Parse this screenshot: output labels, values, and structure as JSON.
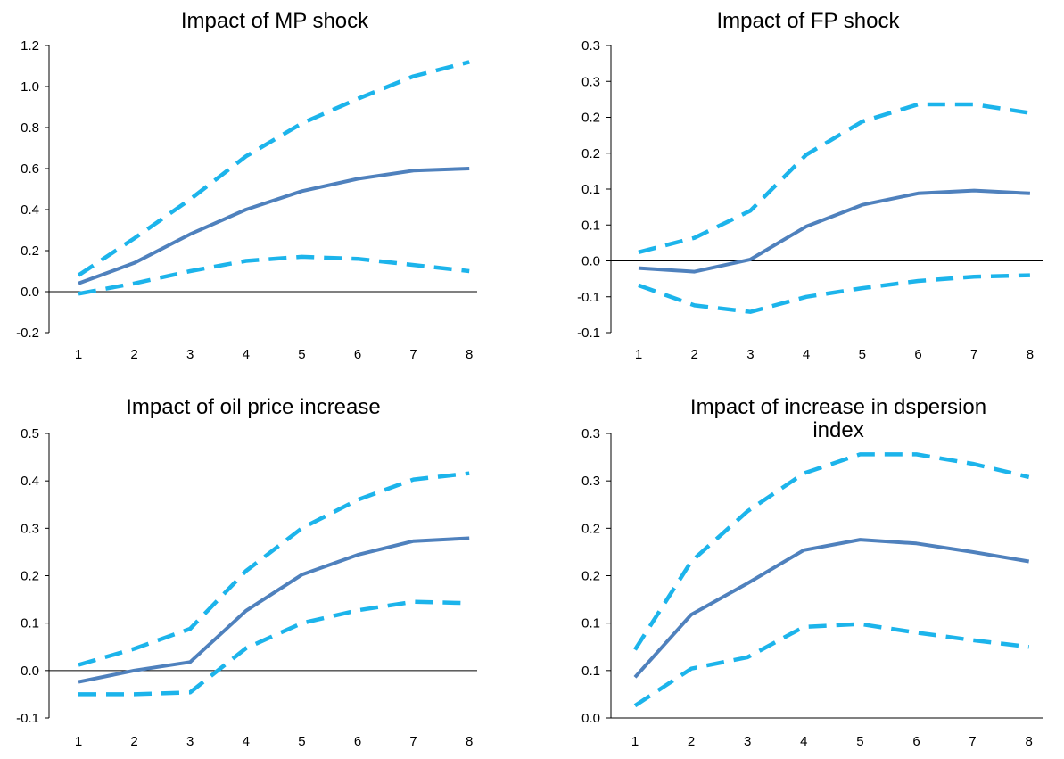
{
  "colors": {
    "estimate": "#4F81BD",
    "band": "#1CB4EB",
    "axis": "#000000"
  },
  "chart_data": [
    {
      "type": "line",
      "title_lines": [
        "Impact of MP shock"
      ],
      "x": [
        1,
        2,
        3,
        4,
        5,
        6,
        7,
        8
      ],
      "ylim": [
        -0.2,
        1.2
      ],
      "yticks": [
        -0.2,
        0.0,
        0.2,
        0.4,
        0.6,
        0.8,
        1.0,
        1.2
      ],
      "ytick_labels": [
        "-0.2",
        "0.0",
        "0.2",
        "0.4",
        "0.6",
        "0.8",
        "1.0",
        "1.2"
      ],
      "xtick_labels": [
        "1",
        "2",
        "3",
        "4",
        "5",
        "6",
        "7",
        "8"
      ],
      "series": [
        {
          "style": "solid",
          "values": [
            0.04,
            0.14,
            0.28,
            0.4,
            0.49,
            0.55,
            0.59,
            0.6
          ]
        },
        {
          "style": "dashed",
          "values": [
            0.08,
            0.26,
            0.45,
            0.66,
            0.82,
            0.94,
            1.05,
            1.12
          ]
        },
        {
          "style": "dashed",
          "values": [
            -0.01,
            0.04,
            0.1,
            0.15,
            0.17,
            0.16,
            0.13,
            0.1
          ]
        }
      ]
    },
    {
      "type": "line",
      "title_lines": [
        "Impact of FP shock"
      ],
      "x": [
        1,
        2,
        3,
        4,
        5,
        6,
        7,
        8
      ],
      "ylim": [
        -0.1,
        0.3
      ],
      "yticks": [
        -0.1,
        -0.05,
        0.0,
        0.05,
        0.1,
        0.15,
        0.2,
        0.25,
        0.3
      ],
      "ytick_labels": [
        "-0.1",
        "-0.1",
        "0.0",
        "0.1",
        "0.1",
        "0.2",
        "0.2",
        "0.3",
        "0.3"
      ],
      "xtick_labels": [
        "1",
        "2",
        "3",
        "4",
        "5",
        "6",
        "7",
        "8"
      ],
      "series": [
        {
          "style": "solid",
          "values": [
            -0.01,
            -0.015,
            0.002,
            0.048,
            0.078,
            0.094,
            0.098,
            0.094
          ]
        },
        {
          "style": "dashed",
          "values": [
            0.012,
            0.032,
            0.07,
            0.148,
            0.194,
            0.218,
            0.218,
            0.206
          ]
        },
        {
          "style": "dashed",
          "values": [
            -0.034,
            -0.062,
            -0.071,
            -0.05,
            -0.038,
            -0.028,
            -0.022,
            -0.02
          ]
        }
      ]
    },
    {
      "type": "line",
      "title_lines": [
        "Impact of oil price increase"
      ],
      "x": [
        1,
        2,
        3,
        4,
        5,
        6,
        7,
        8
      ],
      "ylim": [
        -0.1,
        0.5
      ],
      "yticks": [
        -0.1,
        0.0,
        0.1,
        0.2,
        0.3,
        0.4,
        0.5
      ],
      "ytick_labels": [
        "-0.1",
        "0.0",
        "0.1",
        "0.2",
        "0.3",
        "0.4",
        "0.5"
      ],
      "xtick_labels": [
        "1",
        "2",
        "3",
        "4",
        "5",
        "6",
        "7",
        "8"
      ],
      "series": [
        {
          "style": "solid",
          "values": [
            -0.024,
            0.0,
            0.018,
            0.126,
            0.202,
            0.244,
            0.273,
            0.279
          ]
        },
        {
          "style": "dashed",
          "values": [
            0.012,
            0.046,
            0.088,
            0.21,
            0.3,
            0.36,
            0.403,
            0.416
          ]
        },
        {
          "style": "dashed",
          "values": [
            -0.05,
            -0.05,
            -0.046,
            0.047,
            0.1,
            0.127,
            0.145,
            0.142
          ]
        }
      ]
    },
    {
      "type": "line",
      "title_lines": [
        "Impact of increase in dspersion",
        "index"
      ],
      "x": [
        1,
        2,
        3,
        4,
        5,
        6,
        7,
        8
      ],
      "ylim": [
        0.0,
        0.3
      ],
      "yticks": [
        0.0,
        0.05,
        0.1,
        0.15,
        0.2,
        0.25,
        0.3
      ],
      "ytick_labels": [
        "0.0",
        "0.1",
        "0.1",
        "0.2",
        "0.2",
        "0.3",
        "0.3"
      ],
      "xtick_labels": [
        "1",
        "2",
        "3",
        "4",
        "5",
        "6",
        "7",
        "8"
      ],
      "series": [
        {
          "style": "solid",
          "values": [
            0.043,
            0.109,
            0.142,
            0.177,
            0.188,
            0.184,
            0.175,
            0.165
          ]
        },
        {
          "style": "dashed",
          "values": [
            0.072,
            0.165,
            0.218,
            0.258,
            0.278,
            0.278,
            0.268,
            0.254
          ]
        },
        {
          "style": "dashed",
          "values": [
            0.013,
            0.052,
            0.064,
            0.096,
            0.099,
            0.09,
            0.082,
            0.075
          ]
        }
      ]
    }
  ]
}
